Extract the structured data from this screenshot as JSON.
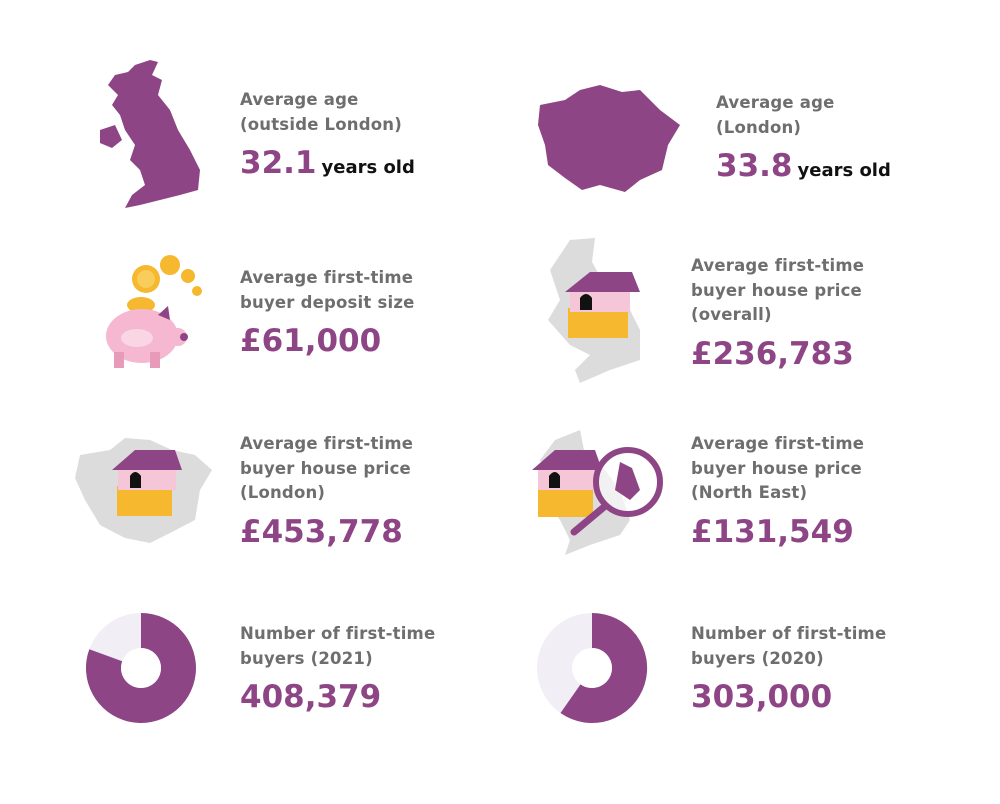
{
  "items": [
    {
      "label": [
        "Average age",
        "(outside London)"
      ],
      "value": "32.1",
      "unit": "years old"
    },
    {
      "label": [
        "Average age",
        "(London)"
      ],
      "value": "33.8",
      "unit": "years old"
    },
    {
      "label": [
        "Average first-time",
        "buyer deposit size"
      ],
      "value": "£61,000"
    },
    {
      "label": [
        "Average first-time",
        "buyer house price",
        "(overall)"
      ],
      "value": "£236,783"
    },
    {
      "label": [
        "Average first-time",
        "buyer house price",
        "(London)"
      ],
      "value": "£453,778"
    },
    {
      "label": [
        "Average first-time",
        "buyer house price",
        "(North East)"
      ],
      "value": "£131,549"
    },
    {
      "label": [
        "Number of first-time",
        "buyers (2021)"
      ],
      "value": "408,379"
    },
    {
      "label": [
        "Number of first-time",
        "buyers (2020)"
      ],
      "value": "303,000"
    }
  ]
}
